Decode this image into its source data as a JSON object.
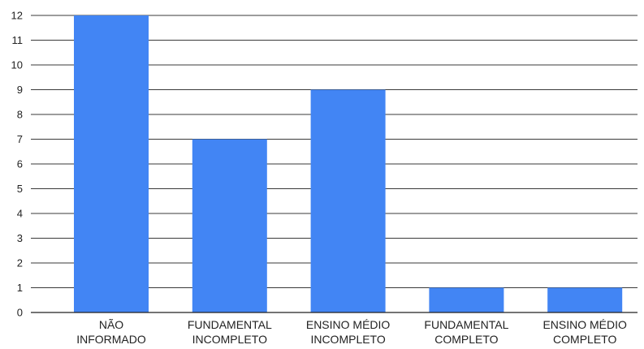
{
  "chart_data": {
    "type": "bar",
    "categories": [
      [
        "NÃO",
        "INFORMADO"
      ],
      [
        "FUNDAMENTAL",
        "INCOMPLETO"
      ],
      [
        "ENSINO MÉDIO",
        "INCOMPLETO"
      ],
      [
        "FUNDAMENTAL",
        "COMPLETO"
      ],
      [
        "ENSINO MÉDIO",
        "COMPLETO"
      ]
    ],
    "values": [
      12,
      7,
      9,
      1,
      1
    ],
    "ylim": [
      0,
      12
    ],
    "yticks": [
      "0",
      "1",
      "2",
      "3",
      "4",
      "5",
      "6",
      "7",
      "8",
      "9",
      "10",
      "11",
      "12"
    ],
    "grid": true,
    "bar_color": "#4285f4",
    "title": "",
    "xlabel": "",
    "ylabel": ""
  }
}
